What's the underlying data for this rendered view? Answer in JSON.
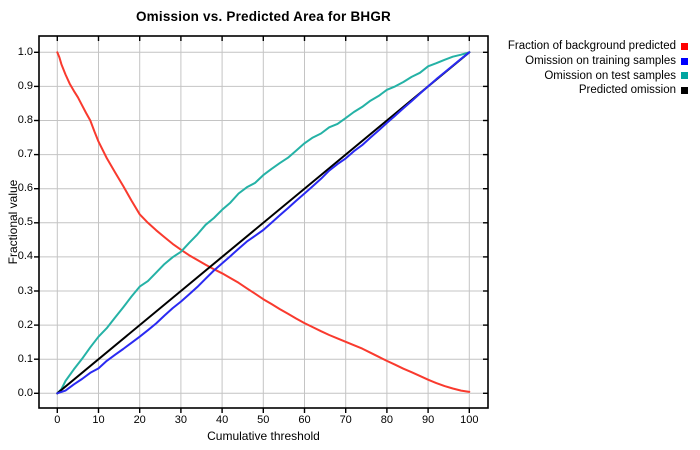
{
  "title": "Omission vs. Predicted Area for BHGR",
  "chart_data": {
    "type": "line",
    "title": "Omission vs. Predicted Area for BHGR",
    "xlabel": "Cumulative threshold",
    "ylabel": "Fractional value",
    "xlim": [
      0,
      100
    ],
    "ylim": [
      0.0,
      1.0
    ],
    "grid": true,
    "legend_position": "top-right-outside",
    "x_ticks": [
      0,
      10,
      20,
      30,
      40,
      50,
      60,
      70,
      80,
      90,
      100
    ],
    "x_tick_labels": [
      "0",
      "10",
      "20",
      "30",
      "40",
      "50",
      "60",
      "70",
      "80",
      "90",
      "100"
    ],
    "y_ticks": [
      0.0,
      0.1,
      0.2,
      0.3,
      0.4,
      0.5,
      0.6,
      0.7,
      0.8,
      0.9,
      1.0
    ],
    "y_tick_labels": [
      "0.0",
      "0.1",
      "0.2",
      "0.3",
      "0.4",
      "0.5",
      "0.6",
      "0.7",
      "0.8",
      "0.9",
      "1.0"
    ],
    "series": [
      {
        "name": "Fraction of background predicted",
        "color": "#f93a2e",
        "swatch": "#fe0000",
        "points": [
          [
            0,
            1.0
          ],
          [
            0.5,
            0.985
          ],
          [
            1,
            0.965
          ],
          [
            2,
            0.935
          ],
          [
            3,
            0.908
          ],
          [
            4,
            0.887
          ],
          [
            5,
            0.868
          ],
          [
            6,
            0.845
          ],
          [
            7,
            0.822
          ],
          [
            8,
            0.8
          ],
          [
            9,
            0.768
          ],
          [
            10,
            0.738
          ],
          [
            12,
            0.69
          ],
          [
            14,
            0.648
          ],
          [
            16,
            0.608
          ],
          [
            18,
            0.565
          ],
          [
            20,
            0.525
          ],
          [
            22,
            0.5
          ],
          [
            24,
            0.478
          ],
          [
            26,
            0.458
          ],
          [
            28,
            0.438
          ],
          [
            30,
            0.421
          ],
          [
            32,
            0.405
          ],
          [
            34,
            0.391
          ],
          [
            36,
            0.377
          ],
          [
            38,
            0.364
          ],
          [
            40,
            0.352
          ],
          [
            42,
            0.338
          ],
          [
            44,
            0.324
          ],
          [
            46,
            0.308
          ],
          [
            48,
            0.292
          ],
          [
            50,
            0.276
          ],
          [
            52,
            0.262
          ],
          [
            54,
            0.247
          ],
          [
            56,
            0.233
          ],
          [
            58,
            0.219
          ],
          [
            60,
            0.206
          ],
          [
            62,
            0.194
          ],
          [
            64,
            0.182
          ],
          [
            66,
            0.171
          ],
          [
            68,
            0.161
          ],
          [
            70,
            0.151
          ],
          [
            72,
            0.141
          ],
          [
            74,
            0.131
          ],
          [
            76,
            0.119
          ],
          [
            78,
            0.107
          ],
          [
            80,
            0.095
          ],
          [
            82,
            0.084
          ],
          [
            84,
            0.072
          ],
          [
            86,
            0.062
          ],
          [
            88,
            0.051
          ],
          [
            90,
            0.04
          ],
          [
            92,
            0.03
          ],
          [
            94,
            0.021
          ],
          [
            96,
            0.014
          ],
          [
            98,
            0.008
          ],
          [
            100,
            0.004
          ]
        ]
      },
      {
        "name": "Omission on training samples",
        "color": "#2a2af2",
        "swatch": "#0000fe",
        "points": [
          [
            0,
            0
          ],
          [
            2,
            0.008
          ],
          [
            4,
            0.026
          ],
          [
            6,
            0.042
          ],
          [
            8,
            0.06
          ],
          [
            10,
            0.073
          ],
          [
            12,
            0.095
          ],
          [
            14,
            0.113
          ],
          [
            16,
            0.13
          ],
          [
            18,
            0.148
          ],
          [
            20,
            0.166
          ],
          [
            22,
            0.185
          ],
          [
            24,
            0.205
          ],
          [
            26,
            0.228
          ],
          [
            28,
            0.25
          ],
          [
            30,
            0.269
          ],
          [
            32,
            0.29
          ],
          [
            34,
            0.312
          ],
          [
            36,
            0.336
          ],
          [
            38,
            0.36
          ],
          [
            40,
            0.381
          ],
          [
            42,
            0.402
          ],
          [
            44,
            0.424
          ],
          [
            46,
            0.445
          ],
          [
            48,
            0.462
          ],
          [
            50,
            0.479
          ],
          [
            52,
            0.5
          ],
          [
            54,
            0.522
          ],
          [
            56,
            0.543
          ],
          [
            58,
            0.565
          ],
          [
            60,
            0.586
          ],
          [
            62,
            0.607
          ],
          [
            64,
            0.629
          ],
          [
            66,
            0.653
          ],
          [
            68,
            0.672
          ],
          [
            70,
            0.689
          ],
          [
            72,
            0.71
          ],
          [
            74,
            0.728
          ],
          [
            76,
            0.75
          ],
          [
            78,
            0.771
          ],
          [
            80,
            0.793
          ],
          [
            82,
            0.814
          ],
          [
            84,
            0.836
          ],
          [
            86,
            0.857
          ],
          [
            88,
            0.879
          ],
          [
            90,
            0.9
          ],
          [
            92,
            0.921
          ],
          [
            94,
            0.941
          ],
          [
            96,
            0.961
          ],
          [
            98,
            0.981
          ],
          [
            100,
            1.0
          ]
        ]
      },
      {
        "name": "Omission on test samples",
        "color": "#25b2a6",
        "swatch": "#00a5a0",
        "points": [
          [
            0,
            0
          ],
          [
            1,
            0.012
          ],
          [
            2,
            0.036
          ],
          [
            4,
            0.07
          ],
          [
            6,
            0.101
          ],
          [
            8,
            0.135
          ],
          [
            10,
            0.166
          ],
          [
            12,
            0.191
          ],
          [
            14,
            0.222
          ],
          [
            16,
            0.252
          ],
          [
            18,
            0.284
          ],
          [
            20,
            0.313
          ],
          [
            22,
            0.329
          ],
          [
            24,
            0.354
          ],
          [
            26,
            0.379
          ],
          [
            28,
            0.399
          ],
          [
            30,
            0.415
          ],
          [
            32,
            0.441
          ],
          [
            34,
            0.466
          ],
          [
            36,
            0.494
          ],
          [
            38,
            0.514
          ],
          [
            40,
            0.538
          ],
          [
            42,
            0.559
          ],
          [
            44,
            0.586
          ],
          [
            46,
            0.604
          ],
          [
            48,
            0.617
          ],
          [
            50,
            0.64
          ],
          [
            52,
            0.658
          ],
          [
            54,
            0.675
          ],
          [
            56,
            0.691
          ],
          [
            58,
            0.712
          ],
          [
            60,
            0.733
          ],
          [
            62,
            0.75
          ],
          [
            64,
            0.762
          ],
          [
            66,
            0.78
          ],
          [
            68,
            0.79
          ],
          [
            70,
            0.807
          ],
          [
            72,
            0.825
          ],
          [
            74,
            0.84
          ],
          [
            76,
            0.858
          ],
          [
            78,
            0.872
          ],
          [
            80,
            0.89
          ],
          [
            82,
            0.9
          ],
          [
            84,
            0.913
          ],
          [
            86,
            0.928
          ],
          [
            88,
            0.94
          ],
          [
            90,
            0.959
          ],
          [
            92,
            0.968
          ],
          [
            94,
            0.978
          ],
          [
            96,
            0.987
          ],
          [
            98,
            0.993
          ],
          [
            100,
            1.0
          ]
        ]
      },
      {
        "name": "Predicted omission",
        "color": "#000000",
        "swatch": "#000000",
        "points": [
          [
            0,
            0
          ],
          [
            100,
            1.0
          ]
        ]
      }
    ]
  }
}
